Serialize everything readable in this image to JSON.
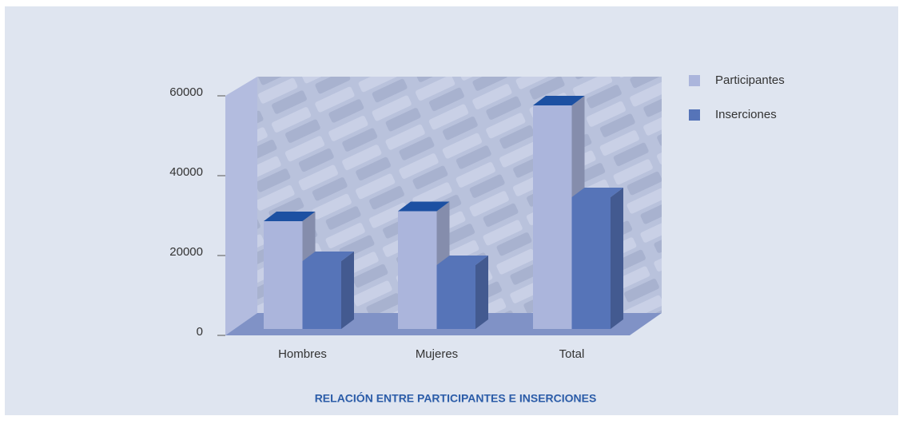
{
  "chart_data": {
    "type": "bar3d",
    "title": "RELACIÓN ENTRE PARTICIPANTES E INSERCIONES",
    "categories": [
      "Hombres",
      "Mujeres",
      "Total"
    ],
    "series": [
      {
        "name": "Participantes",
        "color": "#abb5dc",
        "values": [
          27000,
          29500,
          56000
        ]
      },
      {
        "name": "Inserciones",
        "color": "#5674b8",
        "values": [
          17000,
          16000,
          33000
        ]
      }
    ],
    "ylim": [
      0,
      60000
    ],
    "yticks": [
      0,
      20000,
      40000,
      60000
    ],
    "legend": "right"
  }
}
